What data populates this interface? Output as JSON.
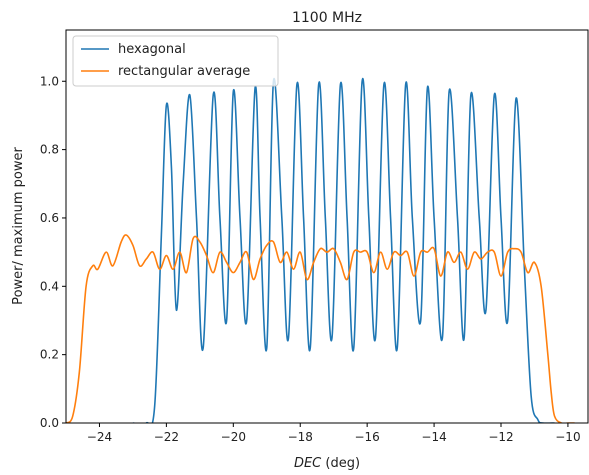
{
  "chart_data": {
    "type": "line",
    "title": "1100 MHz",
    "xlabel": "DEC",
    "xlabel_unit": "(deg)",
    "ylabel": "Power/ maximum power",
    "xlim": [
      -25,
      -9.4
    ],
    "ylim": [
      0,
      1.15
    ],
    "xticks": [
      -24,
      -22,
      -20,
      -18,
      -16,
      -14,
      -12,
      -10
    ],
    "yticks": [
      0.0,
      0.2,
      0.4,
      0.6,
      0.8,
      1.0
    ],
    "xtick_labels": [
      "−24",
      "−22",
      "−20",
      "−18",
      "−16",
      "−14",
      "−12",
      "−10"
    ],
    "ytick_labels": [
      "0.0",
      "0.2",
      "0.4",
      "0.6",
      "0.8",
      "1.0"
    ],
    "grid": false,
    "legend_position": "top-left",
    "series": [
      {
        "name": "hexagonal",
        "color": "#1f77b4",
        "x": [
          -23.0,
          -22.6,
          -22.35,
          -22.15,
          -22.0,
          -21.85,
          -21.7,
          -21.5,
          -21.3,
          -21.1,
          -20.9,
          -20.6,
          -20.4,
          -20.2,
          -20.0,
          -19.8,
          -19.6,
          -19.35,
          -19.2,
          -19.0,
          -18.8,
          -18.55,
          -18.35,
          -18.1,
          -17.9,
          -17.7,
          -17.45,
          -17.25,
          -17.05,
          -16.8,
          -16.6,
          -16.4,
          -16.15,
          -15.95,
          -15.75,
          -15.5,
          -15.3,
          -15.1,
          -14.85,
          -14.65,
          -14.4,
          -14.2,
          -14.0,
          -13.75,
          -13.55,
          -13.3,
          -13.1,
          -12.9,
          -12.65,
          -12.45,
          -12.2,
          -12.0,
          -11.8,
          -11.55,
          -11.3,
          -11.1,
          -10.9,
          -10.75,
          -10.4
        ],
        "y": [
          0.0,
          0.0,
          0.05,
          0.55,
          0.93,
          0.75,
          0.33,
          0.7,
          0.96,
          0.6,
          0.22,
          0.96,
          0.6,
          0.3,
          0.97,
          0.6,
          0.3,
          0.98,
          0.6,
          0.22,
          1.0,
          0.6,
          0.25,
          0.99,
          0.6,
          0.22,
          0.99,
          0.6,
          0.25,
          0.99,
          0.6,
          0.22,
          1.0,
          0.6,
          0.25,
          0.99,
          0.6,
          0.22,
          0.99,
          0.6,
          0.3,
          0.98,
          0.6,
          0.25,
          0.97,
          0.6,
          0.25,
          0.96,
          0.6,
          0.33,
          0.96,
          0.6,
          0.3,
          0.95,
          0.45,
          0.08,
          0.01,
          0.0,
          0.0
        ]
      },
      {
        "name": "rectangular average",
        "color": "#ff7f0e",
        "x": [
          -25.0,
          -24.8,
          -24.6,
          -24.4,
          -24.2,
          -24.05,
          -23.8,
          -23.6,
          -23.35,
          -23.2,
          -23.0,
          -22.8,
          -22.6,
          -22.4,
          -22.2,
          -22.0,
          -21.8,
          -21.6,
          -21.4,
          -21.2,
          -21.0,
          -20.8,
          -20.6,
          -20.4,
          -20.2,
          -20.0,
          -19.8,
          -19.6,
          -19.4,
          -19.2,
          -19.0,
          -18.8,
          -18.6,
          -18.4,
          -18.2,
          -18.0,
          -17.8,
          -17.6,
          -17.4,
          -17.2,
          -17.0,
          -16.8,
          -16.6,
          -16.4,
          -16.2,
          -16.0,
          -15.8,
          -15.6,
          -15.4,
          -15.2,
          -15.0,
          -14.8,
          -14.6,
          -14.4,
          -14.2,
          -14.0,
          -13.8,
          -13.6,
          -13.4,
          -13.2,
          -13.0,
          -12.8,
          -12.6,
          -12.4,
          -12.2,
          -12.0,
          -11.8,
          -11.6,
          -11.4,
          -11.2,
          -11.0,
          -10.8,
          -10.6,
          -10.5,
          -10.4,
          -10.2,
          -10.0,
          -9.8
        ],
        "y": [
          0.0,
          0.02,
          0.15,
          0.4,
          0.46,
          0.45,
          0.5,
          0.46,
          0.53,
          0.55,
          0.52,
          0.46,
          0.48,
          0.5,
          0.45,
          0.49,
          0.45,
          0.5,
          0.44,
          0.54,
          0.53,
          0.49,
          0.44,
          0.5,
          0.47,
          0.44,
          0.47,
          0.5,
          0.42,
          0.48,
          0.52,
          0.53,
          0.47,
          0.5,
          0.45,
          0.5,
          0.42,
          0.47,
          0.51,
          0.5,
          0.51,
          0.47,
          0.42,
          0.5,
          0.5,
          0.5,
          0.44,
          0.5,
          0.45,
          0.5,
          0.49,
          0.5,
          0.43,
          0.5,
          0.5,
          0.51,
          0.43,
          0.5,
          0.47,
          0.5,
          0.45,
          0.5,
          0.48,
          0.5,
          0.5,
          0.43,
          0.5,
          0.51,
          0.5,
          0.44,
          0.47,
          0.4,
          0.2,
          0.09,
          0.02,
          0.0,
          0.0,
          0.0
        ]
      }
    ]
  }
}
